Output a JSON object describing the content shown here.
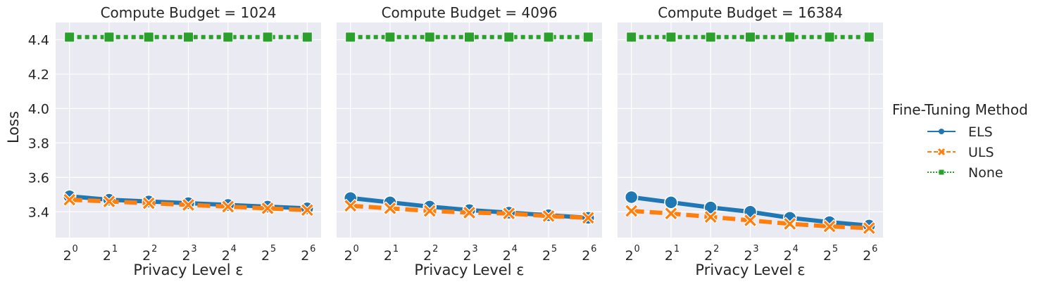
{
  "figure": {
    "ylabel": "Loss",
    "legend_title": "Fine-Tuning Method",
    "legend_placement": "right",
    "colors": {
      "ELS": "#1f77b4",
      "ULS": "#ff7f0e",
      "None": "#2ca02c",
      "background": "#eaeaf2",
      "grid": "#ffffff"
    }
  },
  "chart_data": [
    {
      "type": "line",
      "title": "Compute Budget = 1024",
      "xlabel": "Privacy Level ε",
      "x_tick_base": "2",
      "x": [
        0,
        1,
        2,
        3,
        4,
        5,
        6
      ],
      "xlim": [
        -0.35,
        6.35
      ],
      "ylim": [
        3.25,
        4.5
      ],
      "yticks": [
        "3.4",
        "3.6",
        "3.8",
        "4.0",
        "4.2",
        "4.4"
      ],
      "grid": true,
      "series": [
        {
          "name": "ELS",
          "marker": "circle",
          "style": "solid",
          "values": [
            3.49,
            3.47,
            3.46,
            3.45,
            3.44,
            3.43,
            3.42
          ]
        },
        {
          "name": "ULS",
          "marker": "x",
          "style": "dashed",
          "values": [
            3.47,
            3.46,
            3.45,
            3.44,
            3.43,
            3.42,
            3.41
          ]
        },
        {
          "name": "None",
          "marker": "square",
          "style": "dotted",
          "values": [
            4.415,
            4.415,
            4.415,
            4.415,
            4.415,
            4.415,
            4.415
          ]
        }
      ]
    },
    {
      "type": "line",
      "title": "Compute Budget = 4096",
      "xlabel": "Privacy Level ε",
      "x_tick_base": "2",
      "x": [
        0,
        1,
        2,
        3,
        4,
        5,
        6
      ],
      "xlim": [
        -0.35,
        6.35
      ],
      "ylim": [
        3.25,
        4.5
      ],
      "grid": true,
      "series": [
        {
          "name": "ELS",
          "marker": "circle",
          "style": "solid",
          "values": [
            3.48,
            3.455,
            3.43,
            3.41,
            3.395,
            3.38,
            3.365
          ]
        },
        {
          "name": "ULS",
          "marker": "x",
          "style": "dashed",
          "values": [
            3.435,
            3.42,
            3.405,
            3.395,
            3.39,
            3.375,
            3.365
          ]
        },
        {
          "name": "None",
          "marker": "square",
          "style": "dotted",
          "values": [
            4.415,
            4.415,
            4.415,
            4.415,
            4.415,
            4.415,
            4.415
          ]
        }
      ]
    },
    {
      "type": "line",
      "title": "Compute Budget = 16384",
      "xlabel": "Privacy Level ε",
      "x_tick_base": "2",
      "x": [
        0,
        1,
        2,
        3,
        4,
        5,
        6
      ],
      "xlim": [
        -0.35,
        6.35
      ],
      "ylim": [
        3.25,
        4.5
      ],
      "grid": true,
      "series": [
        {
          "name": "ELS",
          "marker": "circle",
          "style": "solid",
          "values": [
            3.485,
            3.455,
            3.425,
            3.4,
            3.365,
            3.34,
            3.32
          ]
        },
        {
          "name": "ULS",
          "marker": "x",
          "style": "dashed",
          "values": [
            3.405,
            3.39,
            3.37,
            3.35,
            3.33,
            3.315,
            3.305
          ]
        },
        {
          "name": "None",
          "marker": "square",
          "style": "dotted",
          "values": [
            4.415,
            4.415,
            4.415,
            4.415,
            4.415,
            4.415,
            4.415
          ]
        }
      ]
    }
  ]
}
